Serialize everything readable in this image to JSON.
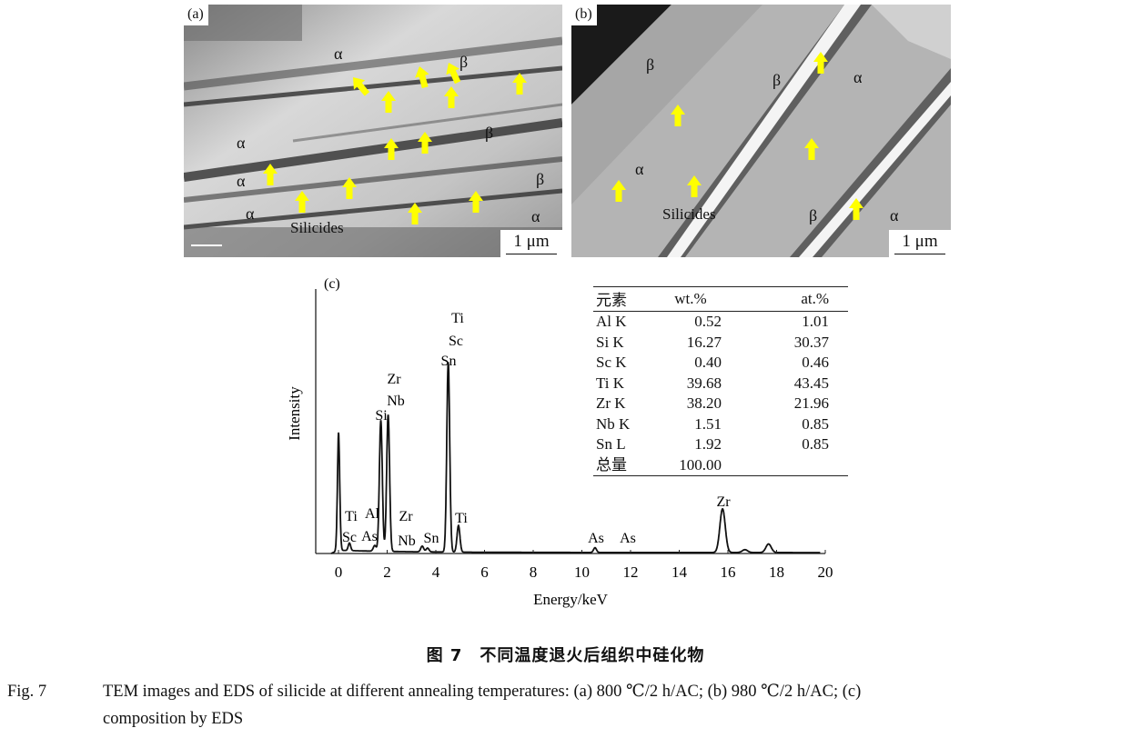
{
  "panel_a": {
    "label": "(a)",
    "scale_bar": "1 μm",
    "phases": [
      "α",
      "β",
      "α",
      "β",
      "α",
      "β",
      "α",
      "α"
    ],
    "silicides_label": "Silicides"
  },
  "panel_b": {
    "label": "(b)",
    "scale_bar": "1 μm",
    "phases": [
      "β",
      "β",
      "α",
      "α",
      "β",
      "α"
    ],
    "silicides_label": "Silicides"
  },
  "panel_c": {
    "label": "(c)",
    "table": {
      "headers": [
        "元素",
        "wt.%",
        "at.%"
      ],
      "rows": [
        [
          "Al K",
          "0.52",
          "1.01"
        ],
        [
          "Si K",
          "16.27",
          "30.37"
        ],
        [
          "Sc K",
          "0.40",
          "0.46"
        ],
        [
          "Ti K",
          "39.68",
          "43.45"
        ],
        [
          "Zr K",
          "38.20",
          "21.96"
        ],
        [
          "Nb K",
          "1.51",
          "0.85"
        ],
        [
          "Sn L",
          "1.92",
          "0.85"
        ],
        [
          "总量",
          "100.00",
          ""
        ]
      ]
    }
  },
  "chart_data": {
    "type": "line",
    "title": "",
    "xlabel": "Energy/keV",
    "ylabel": "Intensity",
    "xlim": [
      -0.9,
      20
    ],
    "ylim": [
      0,
      1.2
    ],
    "xticks": [
      "0",
      "2",
      "4",
      "6",
      "8",
      "10",
      "12",
      "14",
      "16",
      "18",
      "20"
    ],
    "grid": false,
    "peaks": [
      {
        "x": 0.0,
        "y": 0.62
      },
      {
        "x": 0.45,
        "y": 0.04
      },
      {
        "x": 1.49,
        "y": 0.03
      },
      {
        "x": 1.74,
        "y": 0.69
      },
      {
        "x": 2.04,
        "y": 0.72
      },
      {
        "x": 3.44,
        "y": 0.03
      },
      {
        "x": 3.66,
        "y": 0.02
      },
      {
        "x": 4.51,
        "y": 1.0
      },
      {
        "x": 4.93,
        "y": 0.14
      },
      {
        "x": 10.54,
        "y": 0.025
      },
      {
        "x": 15.78,
        "y": 0.23
      },
      {
        "x": 16.7,
        "y": 0.015
      },
      {
        "x": 17.67,
        "y": 0.045
      }
    ],
    "annotations": [
      {
        "text": "Ti",
        "x": 4.51
      },
      {
        "text": "Sc",
        "x": 4.51
      },
      {
        "text": "Sn",
        "x": 4.51
      },
      {
        "text": "Zr",
        "x": 2.04
      },
      {
        "text": "Nb",
        "x": 2.04
      },
      {
        "text": "Si",
        "x": 1.74
      },
      {
        "text": "Ti",
        "x": 0.45
      },
      {
        "text": "Sc",
        "x": 0.45
      },
      {
        "text": "Al",
        "x": 1.49
      },
      {
        "text": "As",
        "x": 1.28
      },
      {
        "text": "Zr",
        "x": 2.6
      },
      {
        "text": "Nb",
        "x": 2.6
      },
      {
        "text": "Sn",
        "x": 3.5
      },
      {
        "text": "Ti",
        "x": 4.93
      },
      {
        "text": "As",
        "x": 10.54
      },
      {
        "text": "As",
        "x": 11.72
      },
      {
        "text": "Zr",
        "x": 15.78
      }
    ]
  },
  "caption": {
    "title_cn": "图 7　不同温度退火后组织中硅化物",
    "fig_num": "Fig. 7",
    "text_line1": "TEM images and EDS of silicide at different annealing temperatures: (a) 800 ℃/2 h/AC; (b) 980 ℃/2 h/AC; (c)",
    "text_line2": "composition by EDS"
  },
  "colors": {
    "arrow": "#ffff00",
    "spectrum": "#111111"
  }
}
